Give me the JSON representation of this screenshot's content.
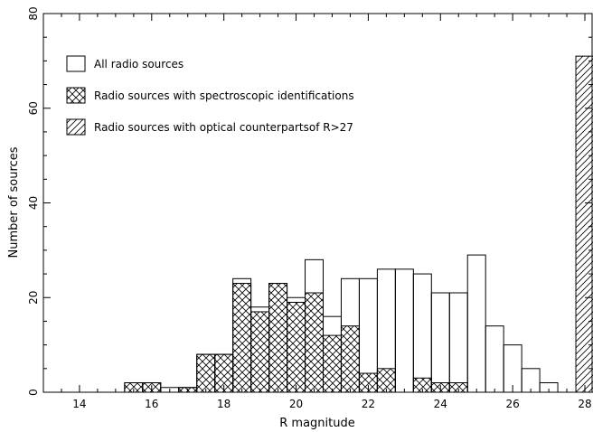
{
  "chart_data": {
    "type": "histogram",
    "xlabel": "R magnitude",
    "ylabel": "Number of sources",
    "xlim": [
      13,
      28.2
    ],
    "ylim": [
      0,
      80
    ],
    "xticks": [
      14,
      16,
      18,
      20,
      22,
      24,
      26,
      28
    ],
    "yticks": [
      0,
      20,
      40,
      60,
      80
    ],
    "bin_width": 0.5,
    "legend_position": "upper-left",
    "series": [
      {
        "name": "All radio sources",
        "style": "outline",
        "bins": [
          {
            "x": 15.5,
            "y": 2
          },
          {
            "x": 16.0,
            "y": 2
          },
          {
            "x": 16.5,
            "y": 1
          },
          {
            "x": 17.0,
            "y": 1
          },
          {
            "x": 17.5,
            "y": 8
          },
          {
            "x": 18.0,
            "y": 8
          },
          {
            "x": 18.5,
            "y": 24
          },
          {
            "x": 19.0,
            "y": 18
          },
          {
            "x": 19.5,
            "y": 23
          },
          {
            "x": 20.0,
            "y": 20
          },
          {
            "x": 20.5,
            "y": 28
          },
          {
            "x": 21.0,
            "y": 16
          },
          {
            "x": 21.5,
            "y": 24
          },
          {
            "x": 22.0,
            "y": 24
          },
          {
            "x": 22.5,
            "y": 26
          },
          {
            "x": 23.0,
            "y": 26
          },
          {
            "x": 23.5,
            "y": 25
          },
          {
            "x": 24.0,
            "y": 21
          },
          {
            "x": 24.5,
            "y": 21
          },
          {
            "x": 25.0,
            "y": 29
          },
          {
            "x": 25.5,
            "y": 14
          },
          {
            "x": 26.0,
            "y": 10
          },
          {
            "x": 26.5,
            "y": 5
          },
          {
            "x": 27.0,
            "y": 2
          }
        ]
      },
      {
        "name": "Radio sources with spectroscopic identifications",
        "style": "crosshatch",
        "bins": [
          {
            "x": 15.5,
            "y": 2
          },
          {
            "x": 16.0,
            "y": 2
          },
          {
            "x": 17.0,
            "y": 1
          },
          {
            "x": 17.5,
            "y": 8
          },
          {
            "x": 18.0,
            "y": 8
          },
          {
            "x": 18.5,
            "y": 23
          },
          {
            "x": 19.0,
            "y": 17
          },
          {
            "x": 19.5,
            "y": 23
          },
          {
            "x": 20.0,
            "y": 19
          },
          {
            "x": 20.5,
            "y": 21
          },
          {
            "x": 21.0,
            "y": 12
          },
          {
            "x": 21.5,
            "y": 14
          },
          {
            "x": 22.0,
            "y": 4
          },
          {
            "x": 22.5,
            "y": 5
          },
          {
            "x": 23.5,
            "y": 3
          },
          {
            "x": 24.0,
            "y": 2
          },
          {
            "x": 24.5,
            "y": 2
          }
        ]
      },
      {
        "name": "Radio sources with optical counterpartsof R>27",
        "style": "diagonal-hatch",
        "bins": [
          {
            "x": 28.0,
            "y": 71
          }
        ]
      }
    ]
  }
}
